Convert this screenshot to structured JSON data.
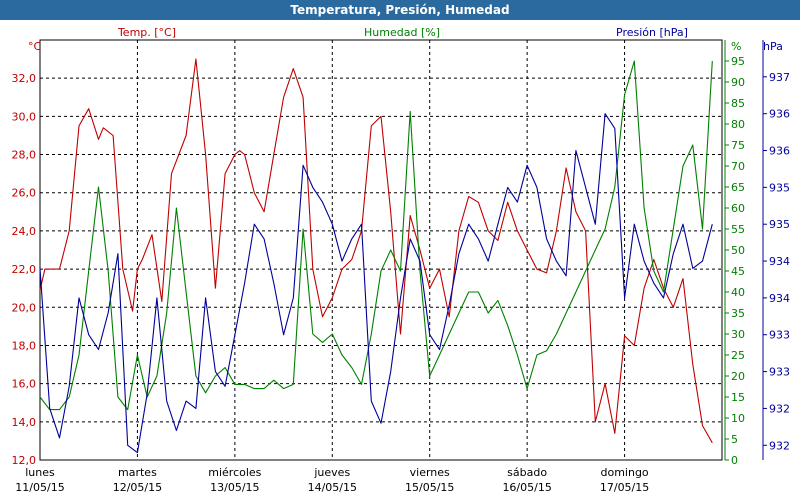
{
  "window": {
    "title": "Temperatura, Presión, Humedad"
  },
  "colors": {
    "temperature": "#c00000",
    "humidity": "#008000",
    "pressure": "#000099",
    "title_bar": "#2a6a9e"
  },
  "chart_data": {
    "type": "line",
    "title": "Temperatura, Presión, Humedad",
    "grid": true,
    "x_axis": {
      "ticks": [
        {
          "day": "lunes",
          "date": "11/05/15"
        },
        {
          "day": "martes",
          "date": "12/05/15"
        },
        {
          "day": "miércoles",
          "date": "13/05/15"
        },
        {
          "day": "jueves",
          "date": "14/05/15"
        },
        {
          "day": "viernes",
          "date": "15/05/15"
        },
        {
          "day": "sábado",
          "date": "16/05/15"
        },
        {
          "day": "domingo",
          "date": "17/05/15"
        }
      ]
    },
    "axes": {
      "temperature": {
        "unit": "°C",
        "ylim": [
          12,
          34
        ],
        "ticks": [
          "12,0",
          "14,0",
          "16,0",
          "18,0",
          "20,0",
          "22,0",
          "24,0",
          "26,0",
          "28,0",
          "30,0",
          "32,0"
        ]
      },
      "humidity": {
        "unit": "%",
        "ylim": [
          0,
          100
        ],
        "ticks": [
          "0",
          "5",
          "10",
          "15",
          "20",
          "25",
          "30",
          "35",
          "40",
          "45",
          "50",
          "55",
          "60",
          "65",
          "70",
          "75",
          "80",
          "85",
          "90",
          "95"
        ]
      },
      "pressure": {
        "unit": "hPa",
        "ylim": [
          931.8,
          937.5
        ],
        "ticks": [
          "932",
          "932",
          "933",
          "933",
          "934",
          "934",
          "935",
          "935",
          "936",
          "936",
          "937"
        ]
      }
    },
    "series": [
      {
        "name": "Temp. [°C]",
        "axis": "temperature",
        "x": [
          0,
          0.05,
          0.2,
          0.3,
          0.4,
          0.5,
          0.6,
          0.65,
          0.75,
          0.85,
          0.95,
          1.0,
          1.05,
          1.15,
          1.25,
          1.35,
          1.5,
          1.6,
          1.7,
          1.8,
          1.9,
          2.0,
          2.05,
          2.1,
          2.15,
          2.2,
          2.3,
          2.4,
          2.5,
          2.6,
          2.7,
          2.8,
          2.9,
          3.0,
          3.1,
          3.2,
          3.3,
          3.4,
          3.5,
          3.6,
          3.7,
          3.8,
          3.9,
          4.0,
          4.1,
          4.2,
          4.3,
          4.4,
          4.5,
          4.6,
          4.7,
          4.8,
          4.9,
          5.0,
          5.1,
          5.2,
          5.3,
          5.4,
          5.5,
          5.6,
          5.7,
          5.8,
          5.9,
          6.0,
          6.1,
          6.2,
          6.3,
          6.4,
          6.5,
          6.6,
          6.7,
          6.8,
          6.9
        ],
        "values": [
          20.9,
          22.0,
          22.0,
          24.0,
          29.5,
          30.4,
          28.8,
          29.4,
          29.0,
          22.0,
          19.8,
          22.0,
          22.5,
          23.8,
          20.3,
          27.0,
          29.0,
          33.0,
          28.0,
          21.0,
          27.0,
          28.0,
          28.2,
          28.0,
          27.0,
          26.0,
          25.0,
          28.0,
          31.0,
          32.5,
          31.0,
          22.0,
          19.5,
          20.5,
          22.0,
          22.5,
          24.0,
          29.5,
          30.0,
          25.0,
          18.6,
          24.8,
          23.0,
          21.0,
          22.0,
          19.5,
          24.0,
          25.8,
          25.5,
          24.0,
          23.5,
          25.5,
          24.0,
          23.0,
          22.0,
          21.8,
          24.0,
          27.3,
          25.0,
          24.0,
          14.0,
          16.0,
          13.4,
          18.5,
          18.0,
          21.0,
          22.5,
          21.0,
          20.0,
          21.5,
          17.0,
          13.8,
          12.9
        ]
      },
      {
        "name": "Humedad [%]",
        "axis": "humidity",
        "x": [
          0,
          0.1,
          0.2,
          0.3,
          0.4,
          0.5,
          0.6,
          0.7,
          0.8,
          0.9,
          1.0,
          1.1,
          1.2,
          1.3,
          1.4,
          1.5,
          1.6,
          1.7,
          1.8,
          1.9,
          2.0,
          2.1,
          2.2,
          2.3,
          2.4,
          2.5,
          2.6,
          2.7,
          2.8,
          2.9,
          3.0,
          3.1,
          3.2,
          3.3,
          3.4,
          3.5,
          3.6,
          3.7,
          3.8,
          3.9,
          4.0,
          4.1,
          4.2,
          4.3,
          4.4,
          4.5,
          4.6,
          4.7,
          4.8,
          4.9,
          5.0,
          5.1,
          5.2,
          5.3,
          5.4,
          5.5,
          5.6,
          5.7,
          5.8,
          5.9,
          6.0,
          6.1,
          6.2,
          6.3,
          6.4,
          6.5,
          6.6,
          6.7,
          6.8,
          6.9
        ],
        "values": [
          15,
          12,
          12,
          15,
          25,
          45,
          65,
          45,
          15,
          12,
          25,
          15,
          20,
          35,
          60,
          40,
          20,
          16,
          20,
          22,
          18,
          18,
          17,
          17,
          19,
          17,
          18,
          55,
          30,
          28,
          30,
          25,
          22,
          18,
          30,
          45,
          50,
          45,
          83,
          45,
          20,
          25,
          30,
          35,
          40,
          40,
          35,
          38,
          32,
          25,
          17,
          25,
          26,
          30,
          35,
          40,
          45,
          50,
          55,
          65,
          87,
          95,
          60,
          45,
          40,
          55,
          70,
          75,
          55,
          95
        ]
      },
      {
        "name": "Presión [hPa]",
        "axis": "pressure",
        "x": [
          0,
          0.1,
          0.2,
          0.3,
          0.4,
          0.5,
          0.6,
          0.7,
          0.8,
          0.9,
          1.0,
          1.1,
          1.2,
          1.3,
          1.4,
          1.5,
          1.6,
          1.7,
          1.8,
          1.9,
          2.0,
          2.1,
          2.2,
          2.3,
          2.4,
          2.5,
          2.6,
          2.7,
          2.8,
          2.9,
          3.0,
          3.1,
          3.2,
          3.3,
          3.4,
          3.5,
          3.6,
          3.7,
          3.8,
          3.9,
          4.0,
          4.1,
          4.2,
          4.3,
          4.4,
          4.5,
          4.6,
          4.7,
          4.8,
          4.9,
          5.0,
          5.1,
          5.2,
          5.3,
          5.4,
          5.5,
          5.6,
          5.7,
          5.8,
          5.9,
          6.0,
          6.1,
          6.2,
          6.3,
          6.4,
          6.5,
          6.6,
          6.7,
          6.8,
          6.9
        ],
        "values": [
          934.4,
          932.5,
          932.1,
          932.8,
          934.0,
          933.5,
          933.3,
          933.8,
          934.6,
          932.0,
          931.9,
          932.7,
          934.0,
          932.6,
          932.2,
          932.6,
          932.5,
          934.0,
          933.0,
          932.8,
          933.5,
          934.2,
          935.0,
          934.8,
          934.2,
          933.5,
          934.0,
          935.8,
          935.5,
          935.3,
          935.0,
          934.5,
          934.8,
          935.0,
          932.6,
          932.3,
          933.0,
          934.0,
          934.8,
          934.5,
          933.5,
          933.3,
          933.9,
          934.6,
          935.0,
          934.8,
          934.5,
          935.0,
          935.5,
          935.3,
          935.8,
          935.5,
          934.8,
          934.5,
          934.3,
          936.0,
          935.5,
          935.0,
          936.5,
          936.3,
          934.0,
          935.0,
          934.5,
          934.2,
          934.0,
          934.6,
          935.0,
          934.4,
          934.5,
          935.0
        ]
      }
    ]
  }
}
